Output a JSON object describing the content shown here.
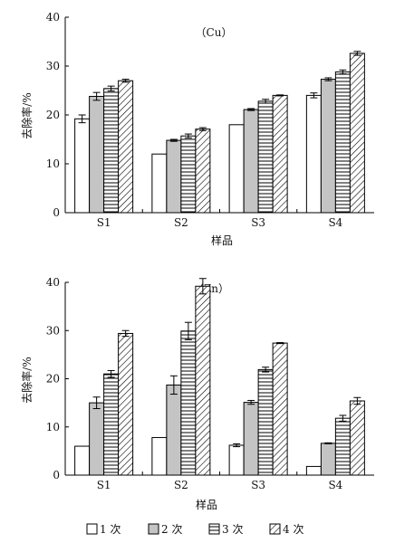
{
  "chart_data": [
    {
      "type": "bar",
      "title": "（Cu）",
      "xlabel": "样品",
      "ylabel": "去除率/%",
      "ylim": [
        0,
        40
      ],
      "yticks": [
        0,
        10,
        20,
        30,
        40
      ],
      "categories": [
        "S1",
        "S2",
        "S3",
        "S4"
      ],
      "series": [
        {
          "name": "1 次",
          "values": [
            19.2,
            12.0,
            18.0,
            24.0
          ],
          "errors": [
            0.8,
            0,
            0,
            0.5
          ]
        },
        {
          "name": "2 次",
          "values": [
            23.8,
            14.8,
            21.1,
            27.3
          ],
          "errors": [
            0.8,
            0.2,
            0.2,
            0.3
          ]
        },
        {
          "name": "3 次",
          "values": [
            25.4,
            15.7,
            22.8,
            28.8
          ],
          "errors": [
            0.5,
            0.4,
            0.4,
            0.4
          ]
        },
        {
          "name": "4 次",
          "values": [
            27.0,
            17.1,
            24.0,
            32.6
          ],
          "errors": [
            0.3,
            0.3,
            0.1,
            0.4
          ]
        }
      ],
      "grid": false
    },
    {
      "type": "bar",
      "title": "（Zn）",
      "xlabel": "样品",
      "ylabel": "去除率/%",
      "ylim": [
        0,
        40
      ],
      "yticks": [
        0,
        10,
        20,
        30,
        40
      ],
      "categories": [
        "S1",
        "S2",
        "S3",
        "S4"
      ],
      "series": [
        {
          "name": "1 次",
          "values": [
            6.0,
            7.8,
            6.2,
            1.8
          ],
          "errors": [
            0,
            0,
            0.3,
            0
          ]
        },
        {
          "name": "2 次",
          "values": [
            15.0,
            18.7,
            15.1,
            6.6
          ],
          "errors": [
            1.2,
            1.9,
            0.4,
            0.1
          ]
        },
        {
          "name": "3 次",
          "values": [
            21.0,
            29.9,
            21.9,
            11.8
          ],
          "errors": [
            0.7,
            1.8,
            0.5,
            0.6
          ]
        },
        {
          "name": "4 次",
          "values": [
            29.4,
            39.2,
            27.4,
            15.4
          ],
          "errors": [
            0.6,
            1.6,
            0.1,
            0.7
          ]
        }
      ],
      "grid": false
    }
  ],
  "legend": {
    "placement": "bottom",
    "items": [
      "1 次",
      "2 次",
      "3 次",
      "4 次"
    ]
  }
}
